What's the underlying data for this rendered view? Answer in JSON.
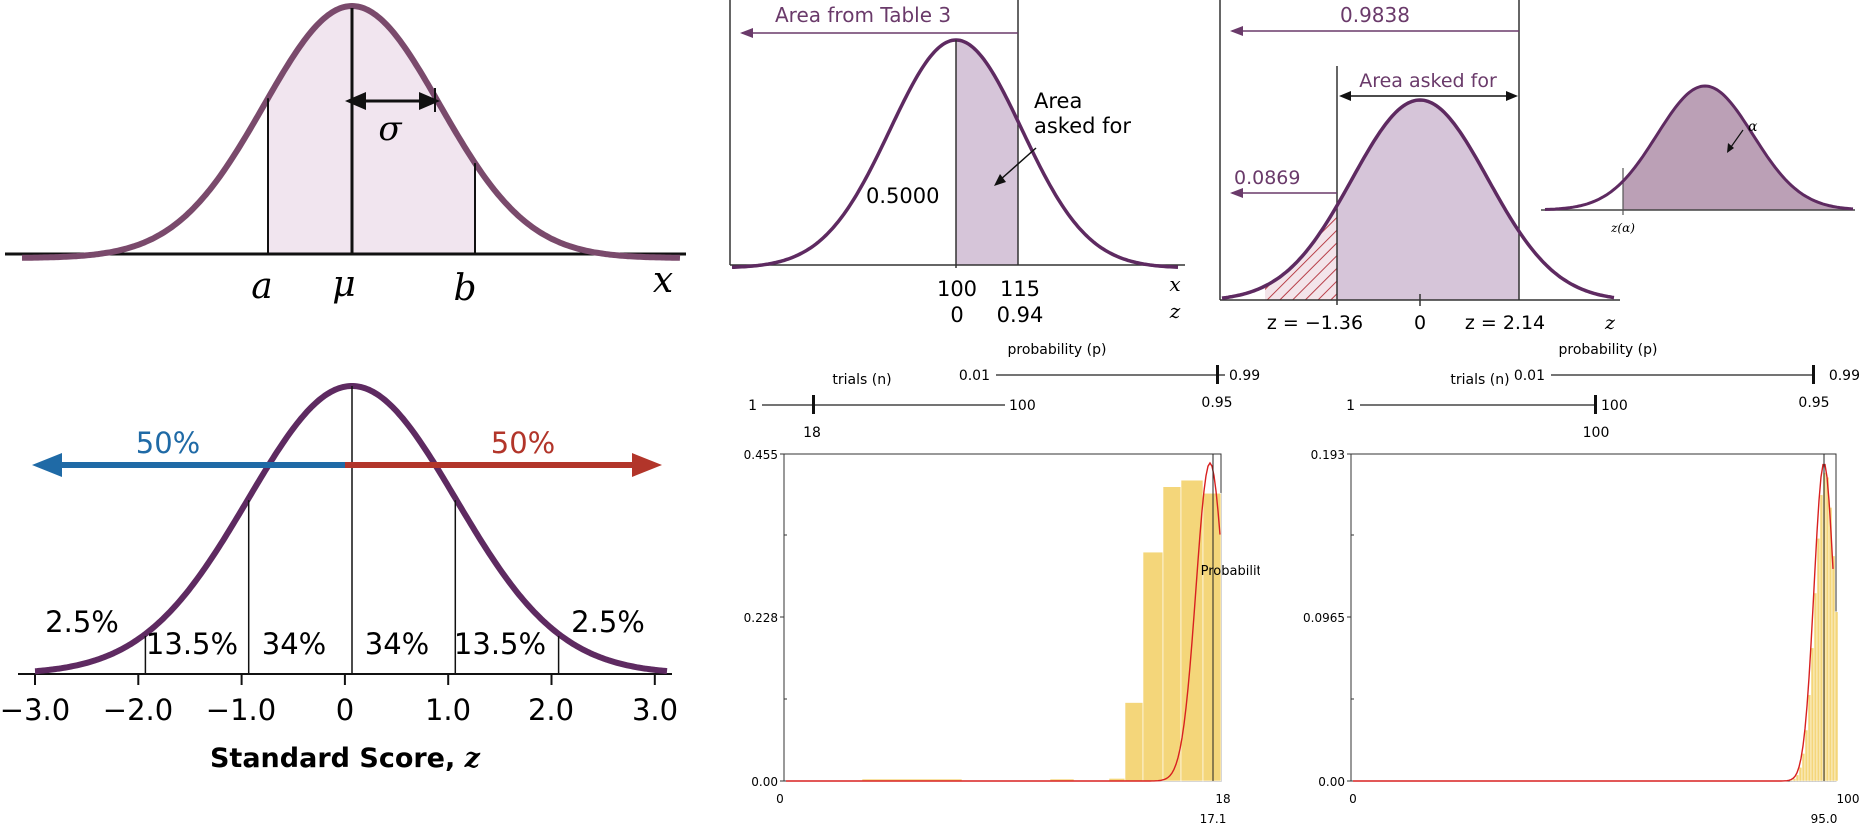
{
  "colors": {
    "curve": "#7a4a6c",
    "curve_dark": "#5e2a61",
    "fill_light": "#f1e5ef",
    "fill_mid": "#d6c5d9",
    "fill_dark": "#bba0b6",
    "left_arrow": "#1f6aa6",
    "right_arrow": "#b2352a",
    "hatch": "#b8404a",
    "bar": "#f4d67a",
    "fit": "#d82020"
  },
  "panel1": {
    "x_label": "x",
    "a_label": "a",
    "mu_label": "μ",
    "b_label": "b",
    "sigma_label": "σ"
  },
  "panel2": {
    "left_pct": "50%",
    "right_pct": "50%",
    "region_labels": [
      "2.5%",
      "13.5%",
      "34%",
      "34%",
      "13.5%",
      "2.5%"
    ],
    "ticks": [
      "−3.0",
      "−2.0",
      "−1.0",
      "0",
      "1.0",
      "2.0",
      "3.0"
    ],
    "axis_label": "Standard Score, ",
    "axis_label_z": "z"
  },
  "panel3": {
    "top_label": "Area from Table 3",
    "area_label_1": "Area",
    "area_label_2": "asked for",
    "half_value": "0.5000",
    "x_ticks": [
      "100",
      "115"
    ],
    "z_ticks": [
      "0",
      "0.94"
    ],
    "x_axis": "x",
    "z_axis": "z"
  },
  "panel4": {
    "top_value": "0.9838",
    "area_label": "Area asked for",
    "left_value": "0.0869",
    "z_left": "z = −1.36",
    "z_zero": "0",
    "z_right": "z = 2.14",
    "z_axis": "z"
  },
  "panel5": {
    "alpha_label": "α",
    "z_alpha": "z(α)"
  },
  "sim1": {
    "prob_label": "probability (p)",
    "prob_min": "0.01",
    "prob_max": "0.99",
    "prob_value": "0.95",
    "trials_label": "trials (n)",
    "trials_min": "1",
    "trials_max": "100",
    "trials_value": "18",
    "y_axis_label": "Probability",
    "y_ticks": [
      "0.455",
      "0.228",
      "0.00"
    ],
    "x_min": "0",
    "x_max": "18",
    "x_marker": "17.1"
  },
  "sim2": {
    "prob_label": "probability (p)",
    "prob_min": "0.01",
    "prob_max": "0.99",
    "prob_value": "0.95",
    "trials_label": "trials (n)",
    "trials_min": "1",
    "trials_max": "100",
    "trials_value": "100",
    "y_ticks": [
      "0.193",
      "0.0965",
      "0.00"
    ],
    "x_min": "0",
    "x_max": "100",
    "x_marker": "95.0"
  }
}
